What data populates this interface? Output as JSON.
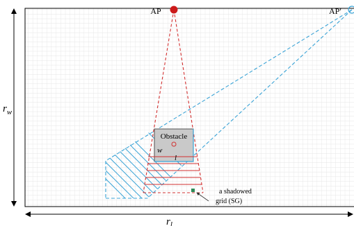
{
  "labels": {
    "ap": "AP",
    "ap_prime": "AP′",
    "obstacle": "Obstacle",
    "w": "w",
    "l": "l",
    "shadowed_grid_line1": "a shadowed",
    "shadowed_grid_line2": "grid (SG)",
    "r_w_main": "r",
    "r_w_sub": "w",
    "r_l_main": "r",
    "r_l_sub": "l"
  },
  "colors": {
    "grid": "#d9d9d9",
    "border": "#000000",
    "ap_dot": "#cc1a1a",
    "red_cone": "#d23030",
    "blue_cone": "#3aa3d6",
    "obstacle_fill": "#c9c9c9",
    "shadowed_grid": "#2e8b57"
  }
}
